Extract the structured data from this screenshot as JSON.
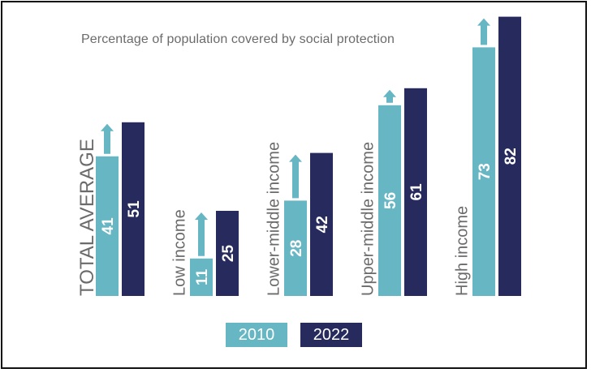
{
  "chart_data": {
    "type": "bar",
    "title": "Percentage of population covered by social protection",
    "categories": [
      "TOTAL AVERAGE",
      "Low income",
      "Lower-middle income",
      "Upper-middle income",
      "High income"
    ],
    "series": [
      {
        "name": "2010",
        "values": [
          41,
          11,
          28,
          56,
          73
        ]
      },
      {
        "name": "2022",
        "values": [
          51,
          25,
          42,
          61,
          82
        ]
      }
    ],
    "colors": {
      "2010": "#67b6c3",
      "2022": "#272a5c",
      "arrow": "#67b6c3",
      "category_label": "#6b6b6b",
      "title": "#6b6b6b"
    }
  }
}
